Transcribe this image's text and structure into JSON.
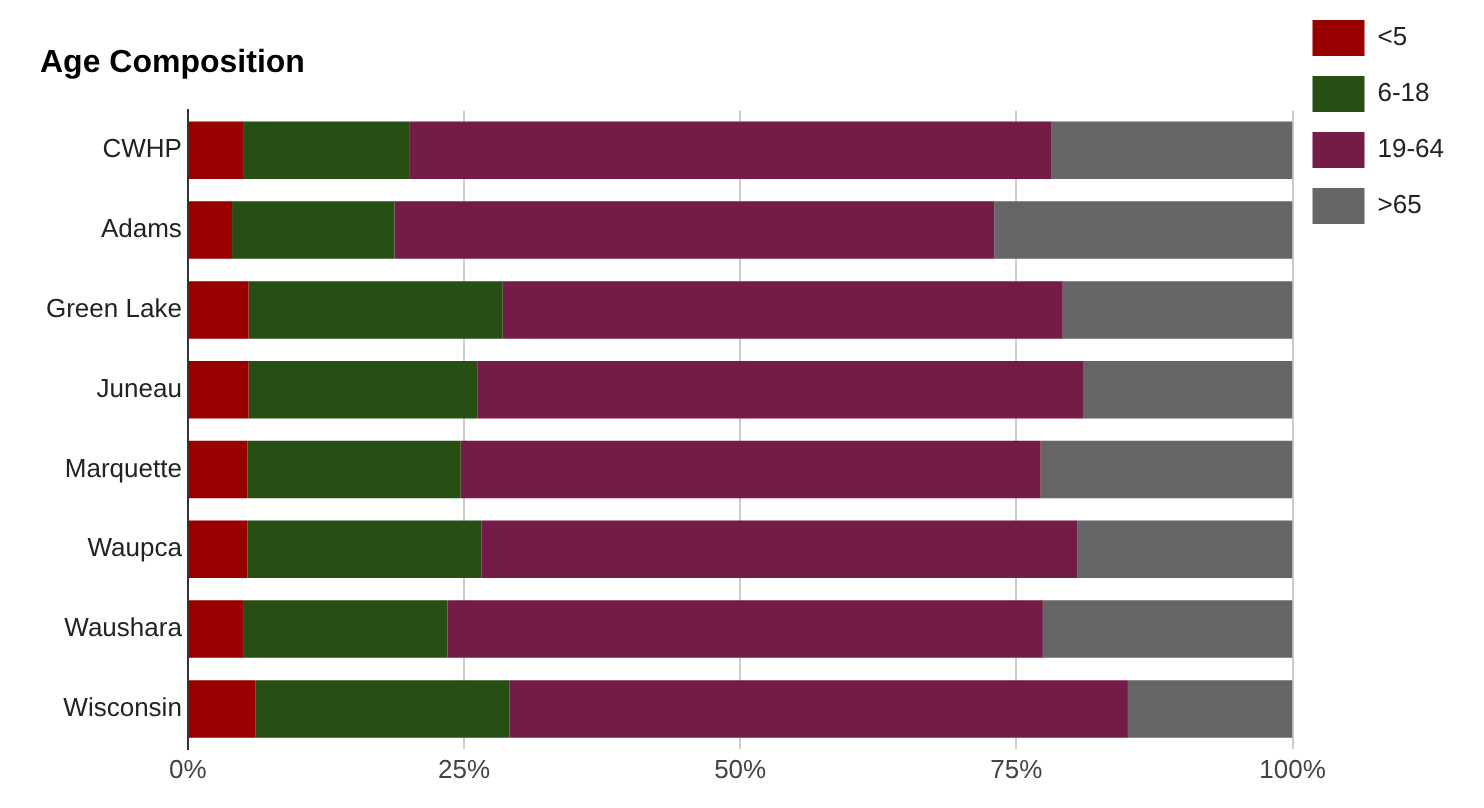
{
  "chart_data": {
    "type": "bar",
    "title": "Age Composition",
    "orientation": "horizontal",
    "stacked": true,
    "categories": [
      "CWHP",
      "Adams",
      "Green Lake",
      "Juneau",
      "Marquette",
      "Waupca",
      "Waushara",
      "Wisconsin"
    ],
    "series": [
      {
        "name": "<5",
        "color": "#990000",
        "values": [
          5.0,
          4.0,
          5.5,
          5.5,
          5.4,
          5.4,
          5.0,
          6.1
        ]
      },
      {
        "name": "6-18",
        "color": "#274e13",
        "values": [
          15.1,
          14.7,
          23.0,
          20.7,
          19.3,
          21.2,
          18.5,
          23.0
        ]
      },
      {
        "name": "19-64",
        "color": "#741b47",
        "values": [
          58.1,
          54.3,
          50.7,
          54.9,
          52.5,
          53.9,
          53.9,
          56.0
        ]
      },
      {
        "name": ">65",
        "color": "#666666",
        "values": [
          21.8,
          27.0,
          20.8,
          18.9,
          22.8,
          19.5,
          22.6,
          14.9
        ]
      }
    ],
    "xlim": [
      0,
      100
    ],
    "xticks": [
      {
        "value": 0,
        "label": "0%"
      },
      {
        "value": 25,
        "label": "25%"
      },
      {
        "value": 50,
        "label": "50%"
      },
      {
        "value": 75,
        "label": "75%"
      },
      {
        "value": 100,
        "label": "100%"
      }
    ],
    "grid": "x",
    "legend": "top right"
  }
}
